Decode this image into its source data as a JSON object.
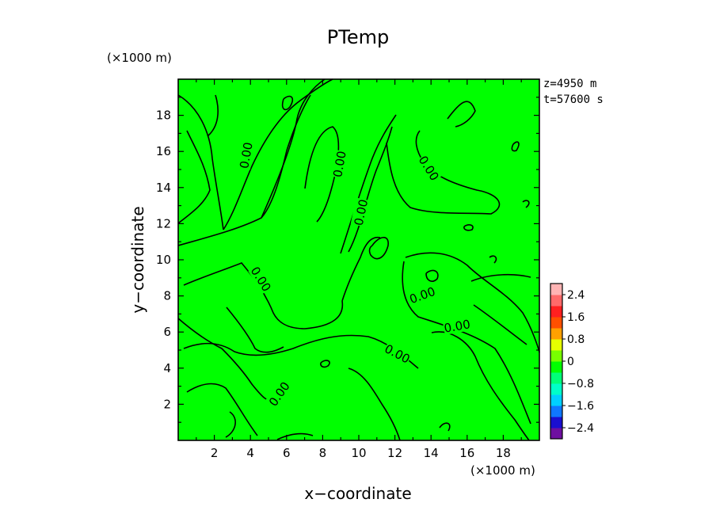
{
  "chart_data": {
    "type": "heatmap",
    "title": "PTemp",
    "xlabel": "x−coordinate",
    "ylabel": "y−coordinate",
    "x_unit": "(×1000 m)",
    "y_unit": "(×1000 m)",
    "xlim": [
      0,
      20
    ],
    "ylim": [
      0,
      20
    ],
    "x_ticks": [
      "2",
      "4",
      "6",
      "8",
      "10",
      "12",
      "14",
      "16",
      "18"
    ],
    "y_ticks": [
      "2",
      "4",
      "6",
      "8",
      "10",
      "12",
      "14",
      "16",
      "18"
    ],
    "info_lines": [
      "z=4950  m",
      "t=57600  s"
    ],
    "colorbar": {
      "range": [
        -2.8,
        2.8
      ],
      "labels": [
        "2.4",
        "1.6",
        "0.8",
        "0",
        "−0.8",
        "−1.6",
        "−2.4"
      ],
      "colors": [
        "#6e0fa0",
        "#1a0fd0",
        "#0f78ff",
        "#00d0ff",
        "#00ffc8",
        "#00ff78",
        "#00ff00",
        "#78ff00",
        "#e6ff00",
        "#ffa000",
        "#ff5000",
        "#ff2020",
        "#ff6a6a",
        "#ffb4b4"
      ]
    },
    "field_color": "#00ff00",
    "contour_label": "0.00",
    "contour_level": 0.0
  }
}
